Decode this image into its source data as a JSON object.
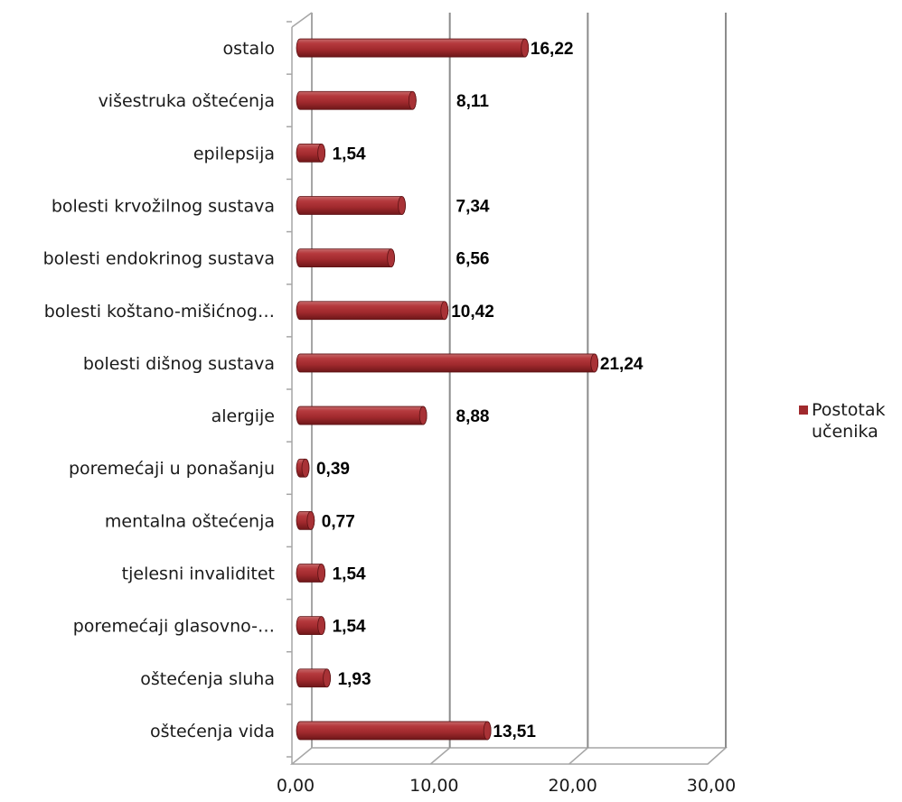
{
  "chart_data": {
    "type": "bar",
    "orientation": "horizontal",
    "style": "3d-cylinder",
    "categories": [
      "oštećenja vida",
      "oštećenja sluha",
      "poremećaji glasovno-…",
      "tjelesni invaliditet",
      "mentalna oštećenja",
      "poremećaji u ponašanju",
      "alergije",
      "bolesti dišnog sustava",
      "bolesti koštano-mišićnog…",
      "bolesti endokrinog sustava",
      "bolesti krvožilnog sustava",
      "epilepsija",
      "višestruka oštećenja",
      "ostalo"
    ],
    "series": [
      {
        "name": "Postotak učenika",
        "color": "#a0292d",
        "values": [
          13.51,
          1.93,
          1.54,
          1.54,
          0.77,
          0.39,
          8.88,
          21.24,
          10.42,
          6.56,
          7.34,
          1.54,
          8.11,
          16.22
        ],
        "data_labels": [
          "13,51",
          "1,93",
          "1,54",
          "1,54",
          "0,77",
          "0,39",
          "8,88",
          "21,24",
          "10,42",
          "6,56",
          "7,34",
          "1,54",
          "8,11",
          "16,22"
        ]
      }
    ],
    "x_ticks": [
      "0,00",
      "10,00",
      "20,00",
      "30,00"
    ],
    "xlim": [
      0,
      30
    ],
    "grid": true,
    "legend_position": "right"
  }
}
